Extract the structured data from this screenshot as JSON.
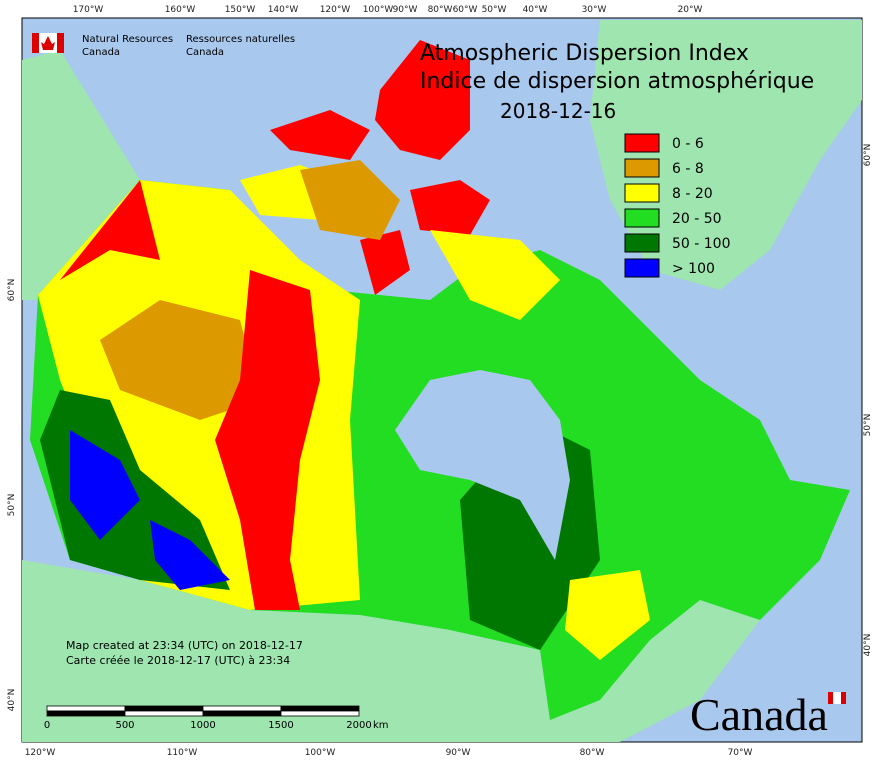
{
  "header": {
    "org_en": "Natural Resources",
    "org_en2": "Canada",
    "org_fr": "Ressources naturelles",
    "org_fr2": "Canada"
  },
  "title": {
    "line1": "Atmospheric Dispersion Index",
    "line2": "Indice de dispersion atmosphérique",
    "date": "2018-12-16"
  },
  "legend": [
    {
      "label": "0 - 6",
      "color": "#ff0000"
    },
    {
      "label": "6 - 8",
      "color": "#dd9900"
    },
    {
      "label": "8 - 20",
      "color": "#ffff00"
    },
    {
      "label": "20 - 50",
      "color": "#22dd22"
    },
    {
      "label": "50 - 100",
      "color": "#007700"
    },
    {
      "label": "> 100",
      "color": "#0000ff"
    }
  ],
  "graticule": {
    "top": [
      "170°W",
      "160°W",
      "150°W",
      "140°W",
      "120°W",
      "100°W",
      "90°W",
      "80°W",
      "60°W",
      "50°W",
      "40°W",
      "30°W",
      "20°W"
    ],
    "bottom": [
      "120°W",
      "110°W",
      "100°W",
      "90°W",
      "80°W",
      "70°W"
    ],
    "left": [
      "60°N",
      "50°N",
      "40°N"
    ],
    "right": [
      "60°N",
      "50°N",
      "40°N"
    ]
  },
  "notes": [
    "Map created at 23:34 (UTC) on 2018-12-17",
    "Carte créée le 2018-12-17 (UTC) à 23:34"
  ],
  "scale": {
    "labels": [
      "0",
      "500",
      "1000",
      "1500",
      "2000"
    ],
    "unit": "km"
  },
  "wordmark": "Canada"
}
